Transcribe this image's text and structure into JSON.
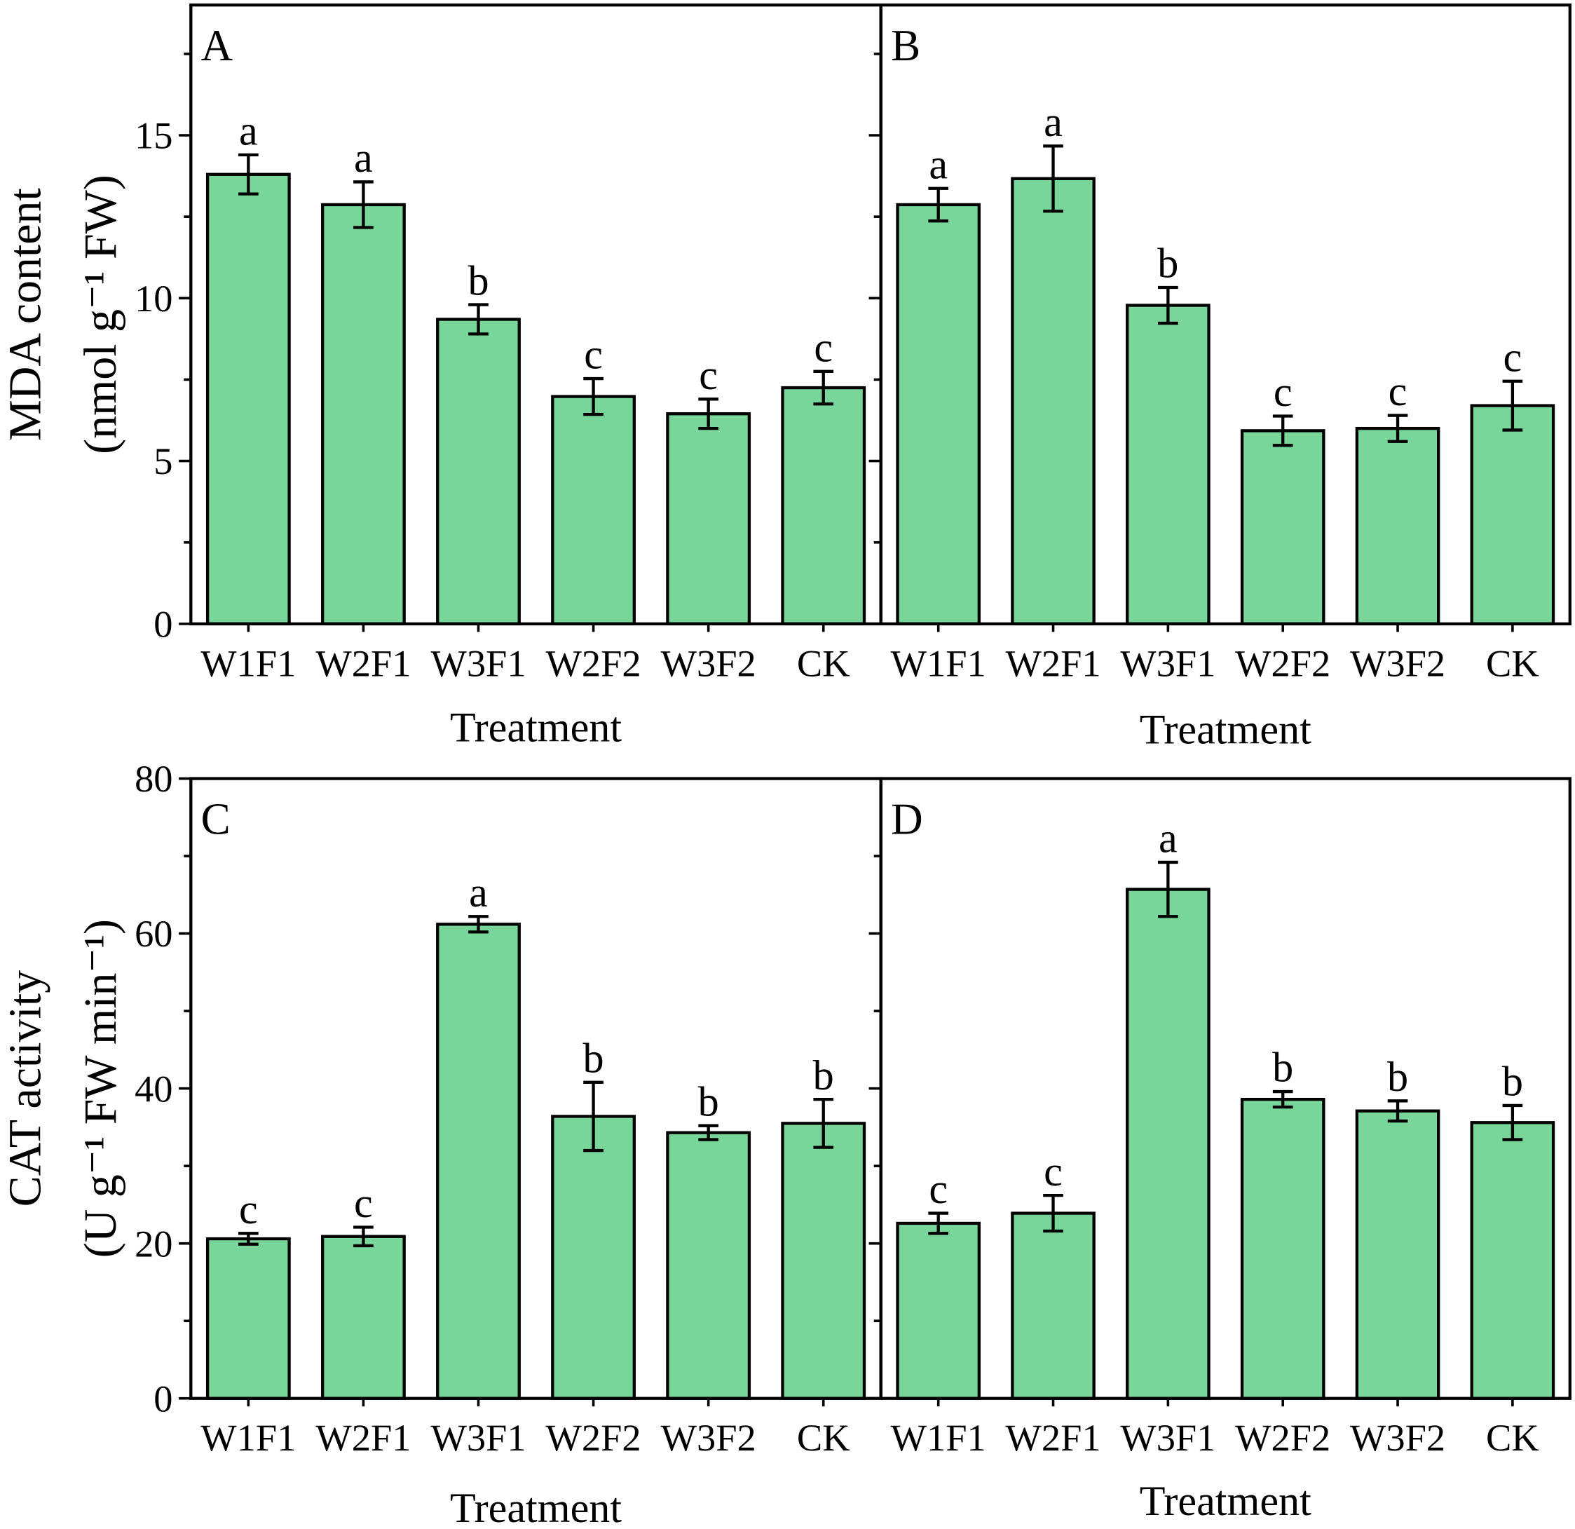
{
  "chart_data": [
    {
      "type": "bar",
      "panel": "A",
      "categories": [
        "W1F1",
        "W2F1",
        "W3F1",
        "W2F2",
        "W3F2",
        "CK"
      ],
      "values": [
        13.8,
        12.87,
        9.35,
        6.98,
        6.45,
        7.25
      ],
      "errors": [
        0.6,
        0.7,
        0.45,
        0.55,
        0.45,
        0.5
      ],
      "letters": [
        "a",
        "a",
        "b",
        "c",
        "c",
        "c"
      ],
      "xlabel": "Treatment",
      "ylabel": "MDA content",
      "ylabel_unit": "(nmol g⁻¹ FW)",
      "ylim": [
        0,
        19
      ],
      "yticks": [
        0,
        5,
        10,
        15
      ]
    },
    {
      "type": "bar",
      "panel": "B",
      "categories": [
        "W1F1",
        "W2F1",
        "W3F1",
        "W2F2",
        "W3F2",
        "CK"
      ],
      "values": [
        12.87,
        13.67,
        9.78,
        5.93,
        6.0,
        6.7
      ],
      "errors": [
        0.5,
        1.0,
        0.55,
        0.45,
        0.4,
        0.75
      ],
      "letters": [
        "a",
        "a",
        "b",
        "c",
        "c",
        "c"
      ],
      "xlabel": "Treatment",
      "ylim": [
        0,
        19
      ],
      "yticks": [
        0,
        5,
        10,
        15
      ]
    },
    {
      "type": "bar",
      "panel": "C",
      "categories": [
        "W1F1",
        "W2F1",
        "W3F1",
        "W2F2",
        "W3F2",
        "CK"
      ],
      "values": [
        20.6,
        20.9,
        61.2,
        36.4,
        34.3,
        35.5
      ],
      "errors": [
        0.7,
        1.2,
        1.0,
        4.4,
        0.9,
        3.1
      ],
      "letters": [
        "c",
        "c",
        "a",
        "b",
        "b",
        "b"
      ],
      "xlabel": "Treatment",
      "ylabel": "CAT activity",
      "ylabel_unit": "(U g⁻¹ FW min⁻¹)",
      "ylim": [
        0,
        80
      ],
      "yticks": [
        0,
        20,
        40,
        60,
        80
      ]
    },
    {
      "type": "bar",
      "panel": "D",
      "categories": [
        "W1F1",
        "W2F1",
        "W3F1",
        "W2F2",
        "W3F2",
        "CK"
      ],
      "values": [
        22.6,
        23.9,
        65.7,
        38.6,
        37.1,
        35.6
      ],
      "errors": [
        1.3,
        2.3,
        3.5,
        1.0,
        1.3,
        2.2
      ],
      "letters": [
        "c",
        "c",
        "a",
        "b",
        "b",
        "b"
      ],
      "xlabel": "Treatment",
      "ylim": [
        0,
        80
      ],
      "yticks": [
        0,
        20,
        40,
        60,
        80
      ]
    }
  ],
  "colors": {
    "bar": "#78D69A",
    "stroke": "#000000"
  }
}
